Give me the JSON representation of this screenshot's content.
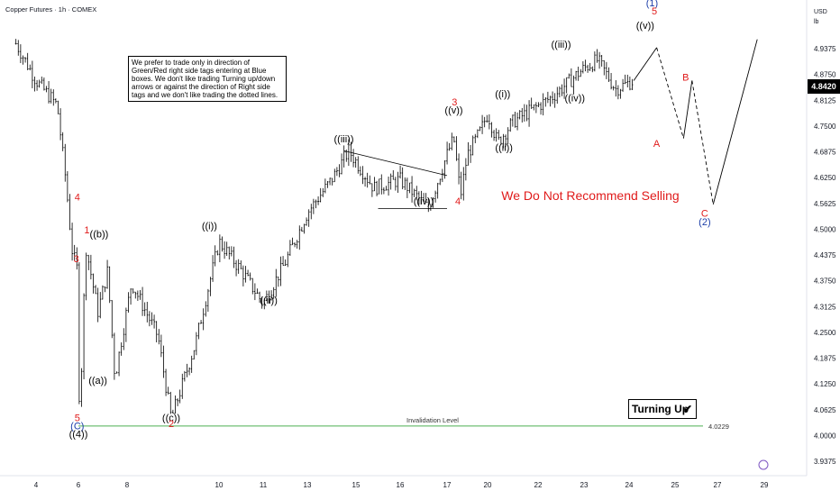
{
  "header": {
    "title": "Copper Futures · 1h · COMEX",
    "currency": "USD",
    "unit": "lb"
  },
  "note_text": "We prefer to trade only in direction of Green/Red right side tags entering at Blue boxes. We don't like trading Turning up/down arrows or against the direction of Right side tags and we don't like trading the dotted lines.",
  "warning_text": "We Do Not Recommend Selling",
  "turning_up_label": "Turning Up",
  "current_price": "4.8420",
  "invalidation": {
    "label": "Invalidation Level",
    "value": 4.0229,
    "value_label": "4.0229"
  },
  "colors": {
    "wave_red": "#e01b1b",
    "wave_blue": "#1c3ea8",
    "invalidation_green": "#4caf50"
  },
  "chart_data": {
    "type": "candlestick",
    "y_ticks": [
      "4.9375",
      "4.8750",
      "4.8125",
      "4.7500",
      "4.6875",
      "4.6250",
      "4.5625",
      "4.5000",
      "4.4375",
      "4.3750",
      "4.3125",
      "4.2500",
      "4.1875",
      "4.1250",
      "4.0625",
      "4.0000",
      "3.9375"
    ],
    "ylim": [
      3.9375,
      4.9375
    ],
    "x_ticks": [
      {
        "label": "4",
        "day": 4
      },
      {
        "label": "6",
        "day": 6
      },
      {
        "label": "8",
        "day": 8
      },
      {
        "label": "10",
        "day": 10
      },
      {
        "label": "11",
        "day": 11
      },
      {
        "label": "13",
        "day": 13
      },
      {
        "label": "15",
        "day": 15
      },
      {
        "label": "16",
        "day": 16
      },
      {
        "label": "17",
        "day": 17
      },
      {
        "label": "20",
        "day": 20
      },
      {
        "label": "22",
        "day": 22
      },
      {
        "label": "23",
        "day": 23
      },
      {
        "label": "24",
        "day": 24
      },
      {
        "label": "25",
        "day": 25
      },
      {
        "label": "27",
        "day": 27
      },
      {
        "label": "29",
        "day": 29
      }
    ],
    "price_path": [
      [
        3.05,
        4.95
      ],
      [
        4.0,
        4.86
      ],
      [
        5.0,
        4.8
      ],
      [
        5.4,
        4.62
      ],
      [
        5.7,
        4.45
      ],
      [
        5.95,
        4.4
      ],
      [
        6.05,
        4.03
      ],
      [
        6.3,
        4.46
      ],
      [
        6.8,
        4.3
      ],
      [
        7.2,
        4.4
      ],
      [
        7.5,
        4.14
      ],
      [
        8.1,
        4.37
      ],
      [
        8.7,
        4.24
      ],
      [
        9.0,
        4.04
      ],
      [
        9.5,
        4.22
      ],
      [
        10.0,
        4.47
      ],
      [
        10.5,
        4.4
      ],
      [
        11.0,
        4.32
      ],
      [
        12.0,
        4.42
      ],
      [
        13.0,
        4.54
      ],
      [
        14.0,
        4.62
      ],
      [
        14.7,
        4.69
      ],
      [
        15.4,
        4.6
      ],
      [
        16.0,
        4.62
      ],
      [
        16.6,
        4.55
      ],
      [
        17.1,
        4.69
      ],
      [
        17.5,
        4.72
      ],
      [
        18.0,
        4.58
      ],
      [
        18.5,
        4.68
      ],
      [
        19.5,
        4.74
      ],
      [
        20.0,
        4.78
      ],
      [
        20.4,
        4.71
      ],
      [
        21.0,
        4.76
      ],
      [
        22.3,
        4.82
      ],
      [
        23.0,
        4.89
      ],
      [
        23.3,
        4.91
      ],
      [
        23.7,
        4.84
      ],
      [
        24.1,
        4.86
      ]
    ],
    "projection": {
      "dashed": [
        [
          24.1,
          4.86
        ],
        [
          24.6,
          4.94
        ],
        [
          25.4,
          4.72
        ],
        [
          25.8,
          4.86
        ],
        [
          26.8,
          4.56
        ]
      ],
      "solid": [
        [
          26.8,
          4.56
        ],
        [
          28.7,
          4.96
        ]
      ]
    },
    "triangle": [
      [
        14.5,
        4.69
      ],
      [
        17.0,
        4.63
      ],
      [
        15.5,
        4.55
      ],
      [
        17.0,
        4.55
      ]
    ],
    "wave_labels": [
      {
        "text": "4",
        "day": 5.95,
        "price": 4.57,
        "color": "red"
      },
      {
        "text": "3",
        "day": 5.9,
        "price": 4.42,
        "color": "red"
      },
      {
        "text": "1",
        "day": 6.35,
        "price": 4.49,
        "color": "red"
      },
      {
        "text": "((b))",
        "day": 6.85,
        "price": 4.48,
        "color": "black"
      },
      {
        "text": "((a))",
        "day": 6.8,
        "price": 4.125,
        "color": "black"
      },
      {
        "text": "5",
        "day": 5.95,
        "price": 4.035,
        "color": "red"
      },
      {
        "text": "(C)",
        "day": 5.95,
        "price": 4.015,
        "color": "blue"
      },
      {
        "text": "((4))",
        "day": 6.0,
        "price": 3.995,
        "color": "black"
      },
      {
        "text": "((c))",
        "day": 9.0,
        "price": 4.035,
        "color": "black"
      },
      {
        "text": "2",
        "day": 9.0,
        "price": 4.02,
        "color": "red"
      },
      {
        "text": "((i))",
        "day": 9.8,
        "price": 4.5,
        "color": "black"
      },
      {
        "text": "((ii))",
        "day": 11.25,
        "price": 4.32,
        "color": "black"
      },
      {
        "text": "((iii))",
        "day": 14.5,
        "price": 4.71,
        "color": "black"
      },
      {
        "text": "((iv))",
        "day": 16.5,
        "price": 4.56,
        "color": "black"
      },
      {
        "text": "4",
        "day": 17.8,
        "price": 4.56,
        "color": "red"
      },
      {
        "text": "3",
        "day": 17.55,
        "price": 4.8,
        "color": "red"
      },
      {
        "text": "((v))",
        "day": 17.5,
        "price": 4.78,
        "color": "black"
      },
      {
        "text": "((i))",
        "day": 20.6,
        "price": 4.82,
        "color": "black"
      },
      {
        "text": "((ii))",
        "day": 20.65,
        "price": 4.69,
        "color": "black"
      },
      {
        "text": "((iii))",
        "day": 22.5,
        "price": 4.94,
        "color": "black"
      },
      {
        "text": "((iv))",
        "day": 22.8,
        "price": 4.81,
        "color": "black"
      },
      {
        "text": "(1)",
        "day": 24.5,
        "price": 5.04,
        "color": "blue"
      },
      {
        "text": "5",
        "day": 24.55,
        "price": 5.02,
        "color": "red"
      },
      {
        "text": "((v))",
        "day": 24.35,
        "price": 4.985,
        "color": "black"
      },
      {
        "text": "B",
        "day": 25.5,
        "price": 4.86,
        "color": "red"
      },
      {
        "text": "A",
        "day": 24.6,
        "price": 4.7,
        "color": "red"
      },
      {
        "text": "C",
        "day": 26.4,
        "price": 4.53,
        "color": "red"
      },
      {
        "text": "(2)",
        "day": 26.4,
        "price": 4.51,
        "color": "blue"
      }
    ]
  }
}
